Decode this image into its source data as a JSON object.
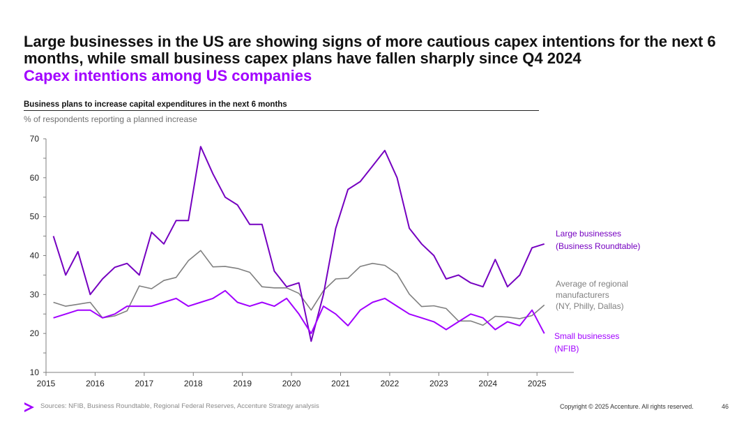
{
  "headline": "Large businesses in the US are showing signs of more cautious capex intentions for the next 6 months, while small business capex plans have fallen sharply since Q4 2024",
  "subhead": "Capex intentions among US companies",
  "chart_title": "Business plans to increase capital expenditures in the next 6 months",
  "chart_subtitle": "% of respondents reporting a planned increase",
  "footer": {
    "source": "Sources: NFIB, Business Roundtable, Regional Federal Reserves, Accenture Strategy analysis",
    "copyright": "Copyright © 2025 Accenture. All rights reserved.",
    "page": "46"
  },
  "colors": {
    "large": "#7500c0",
    "manufacturers": "#7f7f7f",
    "small": "#a100ff",
    "accent": "#a100ff"
  },
  "icons": {
    "logo": "accenture-chevron-icon"
  },
  "chart_data": {
    "type": "line",
    "title": "Business plans to increase capital expenditures in the next 6 months",
    "ylabel": "% of respondents reporting a planned increase",
    "xlim": [
      2015,
      2025.75
    ],
    "ylim": [
      10,
      70
    ],
    "xticks": [
      2015,
      2016,
      2017,
      2018,
      2019,
      2020,
      2021,
      2022,
      2023,
      2024,
      2025
    ],
    "yticks": [
      10,
      20,
      30,
      40,
      50,
      60,
      70
    ],
    "series": [
      {
        "name": "Large businesses (Business Roundtable)",
        "label_lines": [
          "Large businesses",
          "(Business Roundtable)"
        ],
        "color": "#7500c0",
        "x": [
          2015.15,
          2015.4,
          2015.65,
          2015.9,
          2016.15,
          2016.4,
          2016.65,
          2016.9,
          2017.15,
          2017.4,
          2017.65,
          2017.9,
          2018.15,
          2018.4,
          2018.65,
          2018.9,
          2019.15,
          2019.4,
          2019.65,
          2019.9,
          2020.15,
          2020.4,
          2020.65,
          2020.9,
          2021.15,
          2021.4,
          2021.65,
          2021.9,
          2022.15,
          2022.4,
          2022.65,
          2022.9,
          2023.15,
          2023.4,
          2023.65,
          2023.9,
          2024.15,
          2024.4,
          2024.65,
          2024.9,
          2025.15
        ],
        "values": [
          45,
          35,
          41,
          30,
          34,
          37,
          38,
          35,
          46,
          43,
          49,
          49,
          68,
          61,
          55,
          53,
          48,
          48,
          36,
          32,
          33,
          18,
          30,
          47,
          57,
          59,
          63,
          67,
          60,
          47,
          43,
          40,
          34,
          35,
          33,
          32,
          39,
          32,
          35,
          42,
          43
        ]
      },
      {
        "name": "Average of regional manufacturers (NY, Philly, Dallas)",
        "label_lines": [
          "Average of regional",
          "manufacturers",
          "(NY, Philly, Dallas)"
        ],
        "color": "#7f7f7f",
        "x": [
          2015.15,
          2015.4,
          2015.65,
          2015.9,
          2016.15,
          2016.4,
          2016.65,
          2016.9,
          2017.15,
          2017.4,
          2017.65,
          2017.9,
          2018.15,
          2018.4,
          2018.65,
          2018.9,
          2019.15,
          2019.4,
          2019.65,
          2019.9,
          2020.15,
          2020.4,
          2020.65,
          2020.9,
          2021.15,
          2021.4,
          2021.65,
          2021.9,
          2022.15,
          2022.4,
          2022.65,
          2022.9,
          2023.15,
          2023.4,
          2023.65,
          2023.9,
          2024.15,
          2024.4,
          2024.65,
          2024.9,
          2025.15
        ],
        "values": [
          28,
          27,
          27.5,
          28,
          24,
          24.5,
          25.8,
          32.2,
          31.5,
          33.6,
          34.4,
          38.7,
          41.3,
          37.1,
          37.2,
          36.7,
          35.7,
          32,
          31.7,
          31.7,
          30.3,
          26,
          31,
          34,
          34.2,
          37.2,
          38,
          37.5,
          35.3,
          30.1,
          26.9,
          27.1,
          26.4,
          23.2,
          23.2,
          22.1,
          24.4,
          24.2,
          23.8,
          24.6,
          27.3
        ]
      },
      {
        "name": "Small businesses (NFIB)",
        "label_lines": [
          "Small businesses",
          "(NFIB)"
        ],
        "color": "#a100ff",
        "x": [
          2015.15,
          2015.4,
          2015.65,
          2015.9,
          2016.15,
          2016.4,
          2016.65,
          2016.9,
          2017.15,
          2017.4,
          2017.65,
          2017.9,
          2018.15,
          2018.4,
          2018.65,
          2018.9,
          2019.15,
          2019.4,
          2019.65,
          2019.9,
          2020.15,
          2020.4,
          2020.65,
          2020.9,
          2021.15,
          2021.4,
          2021.65,
          2021.9,
          2022.15,
          2022.4,
          2022.65,
          2022.9,
          2023.15,
          2023.4,
          2023.65,
          2023.9,
          2024.15,
          2024.4,
          2024.65,
          2024.9,
          2025.15
        ],
        "values": [
          24,
          25,
          26,
          26,
          24,
          25,
          27,
          27,
          27,
          28,
          29,
          27,
          28,
          29,
          31,
          28,
          27,
          28,
          27,
          29,
          25,
          20,
          27,
          25,
          22,
          26,
          28,
          29,
          27,
          25,
          24,
          23,
          21,
          23,
          25,
          24,
          21,
          23,
          22,
          26,
          20
        ]
      }
    ]
  }
}
